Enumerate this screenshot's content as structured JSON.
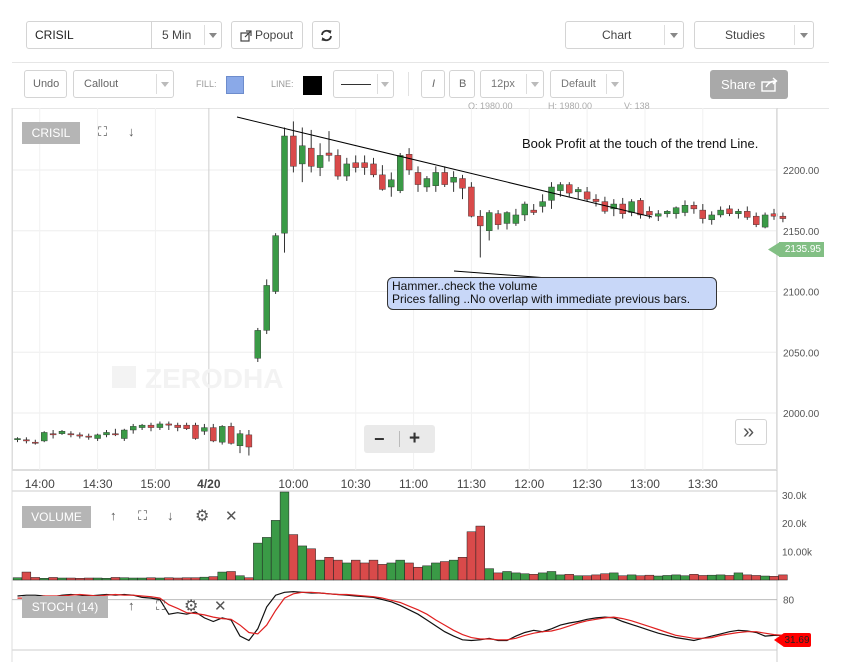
{
  "toolbar": {
    "symbol": "CRISIL",
    "interval": "5 Min",
    "popout_label": "Popout",
    "chart_label": "Chart",
    "studies_label": "Studies"
  },
  "drawbar": {
    "undo_label": "Undo",
    "tool": "Callout",
    "fill_label": "FILL:",
    "fill_color": "#8aa9e8",
    "line_label": "LINE:",
    "line_color": "#000000",
    "italic_label": "I",
    "bold_label": "B",
    "size_value": "12px",
    "font_value": "Default",
    "share_label": "Share"
  },
  "ohlc": [
    "O: 1980.00",
    "H: 1980.00",
    "V: 138"
  ],
  "main_panel": {
    "title": "CRISIL",
    "watermark": "ZERODHA",
    "price_tag": "2135.95",
    "annotation_text": "Book Profit at the touch of the trend Line.",
    "callout_line1": "Hammer..check the volume",
    "callout_line2": "Prices falling ..No overlap with immediate previous bars.",
    "zoom_out": "−",
    "zoom_in": "+",
    "scroll_right": "»"
  },
  "volume_panel": {
    "title": "VOLUME"
  },
  "stoch_panel": {
    "title": "STOCH (14)",
    "value_tag": "31.69"
  },
  "chart_data": [
    {
      "type": "candlestick",
      "title": "CRISIL",
      "ylim": [
        1955,
        2250
      ],
      "y_ticks": [
        "2200.00",
        "2150.00",
        "2100.00",
        "2050.00",
        "2000.00"
      ],
      "x_ticks": [
        "14:00",
        "14:30",
        "15:00",
        "4/20",
        "10:00",
        "10:30",
        "11:00",
        "11:30",
        "12:00",
        "12:30",
        "13:00",
        "13:30"
      ],
      "colors": {
        "up": "#3a9a46",
        "down": "#d94a4a"
      },
      "ohlc": [
        [
          1978,
          1980,
          1976,
          1979
        ],
        [
          1978,
          1980,
          1975,
          1977
        ],
        [
          1976,
          1978,
          1974,
          1975
        ],
        [
          1977,
          1985,
          1976,
          1984
        ],
        [
          1983,
          1986,
          1979,
          1982
        ],
        [
          1983,
          1986,
          1982,
          1985
        ],
        [
          1983,
          1985,
          1980,
          1982
        ],
        [
          1982,
          1984,
          1979,
          1981
        ],
        [
          1981,
          1983,
          1978,
          1980
        ],
        [
          1979,
          1983,
          1977,
          1982
        ],
        [
          1982,
          1986,
          1980,
          1984
        ],
        [
          1983,
          1987,
          1981,
          1982
        ],
        [
          1979,
          1987,
          1977,
          1986
        ],
        [
          1986,
          1991,
          1983,
          1989
        ],
        [
          1988,
          1991,
          1986,
          1990
        ],
        [
          1990,
          1992,
          1985,
          1988
        ],
        [
          1988,
          1993,
          1986,
          1991
        ],
        [
          1991,
          1993,
          1986,
          1990
        ],
        [
          1990,
          1992,
          1985,
          1988
        ],
        [
          1990,
          1992,
          1986,
          1987
        ],
        [
          1990,
          1992,
          1978,
          1979
        ],
        [
          1985,
          1991,
          1982,
          1988
        ],
        [
          1988,
          1991,
          1976,
          1977
        ],
        [
          1976,
          1990,
          1974,
          1989
        ],
        [
          1989,
          1992,
          1974,
          1975
        ],
        [
          1973,
          1986,
          1967,
          1983
        ],
        [
          1982,
          1986,
          1965,
          1972
        ],
        [
          2045,
          2070,
          2042,
          2068
        ],
        [
          2068,
          2110,
          2065,
          2105
        ],
        [
          2100,
          2148,
          2098,
          2146
        ],
        [
          2148,
          2235,
          2132,
          2228
        ],
        [
          2228,
          2240,
          2198,
          2203
        ],
        [
          2205,
          2235,
          2190,
          2220
        ],
        [
          2218,
          2233,
          2198,
          2203
        ],
        [
          2202,
          2222,
          2195,
          2212
        ],
        [
          2214,
          2232,
          2207,
          2212
        ],
        [
          2212,
          2217,
          2192,
          2195
        ],
        [
          2195,
          2210,
          2191,
          2205
        ],
        [
          2206,
          2212,
          2198,
          2202
        ],
        [
          2206,
          2212,
          2196,
          2202
        ],
        [
          2205,
          2210,
          2194,
          2196
        ],
        [
          2196,
          2204,
          2183,
          2184
        ],
        [
          2186,
          2198,
          2178,
          2192
        ],
        [
          2183,
          2214,
          2181,
          2212
        ],
        [
          2213,
          2218,
          2196,
          2200
        ],
        [
          2198,
          2203,
          2182,
          2188
        ],
        [
          2186,
          2195,
          2182,
          2193
        ],
        [
          2187,
          2203,
          2182,
          2198
        ],
        [
          2198,
          2203,
          2186,
          2188
        ],
        [
          2190,
          2199,
          2182,
          2194
        ],
        [
          2193,
          2196,
          2176,
          2185
        ],
        [
          2186,
          2190,
          2161,
          2162
        ],
        [
          2162,
          2167,
          2128,
          2154
        ],
        [
          2150,
          2167,
          2142,
          2165
        ],
        [
          2164,
          2167,
          2151,
          2155
        ],
        [
          2156,
          2166,
          2151,
          2165
        ],
        [
          2156,
          2168,
          2154,
          2163
        ],
        [
          2163,
          2174,
          2158,
          2172
        ],
        [
          2167,
          2172,
          2163,
          2165
        ],
        [
          2170,
          2180,
          2165,
          2174
        ],
        [
          2175,
          2190,
          2168,
          2186
        ],
        [
          2183,
          2190,
          2178,
          2188
        ],
        [
          2188,
          2190,
          2178,
          2181
        ],
        [
          2182,
          2186,
          2176,
          2184
        ],
        [
          2182,
          2186,
          2174,
          2176
        ],
        [
          2176,
          2180,
          2170,
          2174
        ],
        [
          2174,
          2178,
          2164,
          2166
        ],
        [
          2168,
          2176,
          2162,
          2172
        ],
        [
          2172,
          2177,
          2160,
          2164
        ],
        [
          2165,
          2176,
          2162,
          2174
        ],
        [
          2175,
          2177,
          2160,
          2163
        ],
        [
          2166,
          2170,
          2160,
          2163
        ],
        [
          2162,
          2167,
          2158,
          2164
        ],
        [
          2164,
          2167,
          2161,
          2166
        ],
        [
          2164,
          2170,
          2160,
          2169
        ],
        [
          2165,
          2175,
          2162,
          2171
        ],
        [
          2171,
          2174,
          2164,
          2168
        ],
        [
          2167,
          2172,
          2156,
          2160
        ],
        [
          2159,
          2166,
          2155,
          2163
        ],
        [
          2163,
          2170,
          2161,
          2167
        ],
        [
          2168,
          2171,
          2162,
          2164
        ],
        [
          2164,
          2168,
          2160,
          2166
        ],
        [
          2166,
          2170,
          2159,
          2161
        ],
        [
          2162,
          2165,
          2153,
          2155
        ],
        [
          2153,
          2165,
          2152,
          2163
        ],
        [
          2164,
          2168,
          2159,
          2162
        ],
        [
          2162,
          2165,
          2157,
          2160
        ]
      ],
      "annotations": [
        "Book Profit at the touch of the trend Line.",
        "Hammer..check the volume",
        "Prices falling ..No overlap with immediate previous bars."
      ]
    },
    {
      "type": "bar",
      "title": "VOLUME",
      "y_ticks": [
        "30.0k",
        "20.0k",
        "10.00k"
      ],
      "ylim": [
        0,
        31000
      ],
      "values": [
        800,
        2800,
        900,
        600,
        900,
        700,
        700,
        600,
        700,
        700,
        600,
        900,
        800,
        700,
        700,
        800,
        700,
        800,
        700,
        800,
        800,
        1000,
        1200,
        2800,
        3000,
        1500,
        800,
        13000,
        15000,
        21000,
        32000,
        16000,
        12000,
        11000,
        7000,
        8000,
        7000,
        6000,
        7000,
        6000,
        7000,
        5500,
        6000,
        7000,
        6000,
        4500,
        5000,
        6000,
        6500,
        7000,
        8000,
        17000,
        19000,
        4000,
        2500,
        3000,
        2500,
        2200,
        2000,
        2500,
        3000,
        1800,
        2000,
        1500,
        1500,
        1800,
        2200,
        2500,
        1500,
        1800,
        1500,
        1700,
        1400,
        1600,
        1800,
        1500,
        2000,
        1600,
        1700,
        1800,
        1600,
        2500,
        1800,
        1600,
        1400,
        1300,
        1800
      ]
    },
    {
      "type": "line",
      "title": "STOCH (14)",
      "y_ticks": [
        "80"
      ],
      "ylim": [
        0,
        100
      ],
      "series": [
        {
          "values": [
            85,
            86,
            86,
            85,
            84,
            86,
            87,
            86,
            85,
            86,
            87,
            86,
            87,
            86,
            83,
            82,
            80,
            60,
            62,
            60,
            63,
            55,
            50,
            55,
            52,
            30,
            24,
            40,
            70,
            86,
            90,
            91,
            90,
            89,
            89,
            88,
            87,
            86,
            85,
            84,
            83,
            80,
            77,
            72,
            66,
            60,
            52,
            44,
            36,
            30,
            25,
            24,
            25,
            27,
            24,
            24,
            30,
            35,
            38,
            36,
            40,
            45,
            48,
            50,
            53,
            55,
            56,
            55,
            50,
            46,
            42,
            38,
            34,
            31,
            28,
            26,
            24,
            27,
            30,
            33,
            36,
            38,
            37,
            35,
            30,
            31,
            31
          ]
        },
        {
          "values": [
            82,
            82,
            83,
            85,
            85,
            85,
            86,
            87,
            86,
            85,
            86,
            87,
            86,
            86,
            85,
            84,
            82,
            73,
            68,
            62,
            61,
            59,
            56,
            54,
            53,
            45,
            35,
            33,
            45,
            65,
            82,
            88,
            90,
            90,
            89,
            88,
            87,
            87,
            86,
            85,
            84,
            82,
            79,
            76,
            71,
            66,
            60,
            52,
            45,
            38,
            32,
            28,
            26,
            26,
            25,
            25,
            27,
            31,
            34,
            36,
            37,
            40,
            44,
            48,
            51,
            53,
            55,
            56,
            54,
            51,
            47,
            43,
            39,
            35,
            31,
            29,
            27,
            27,
            28,
            31,
            33,
            35,
            36,
            36,
            34,
            32,
            31
          ]
        }
      ]
    }
  ]
}
